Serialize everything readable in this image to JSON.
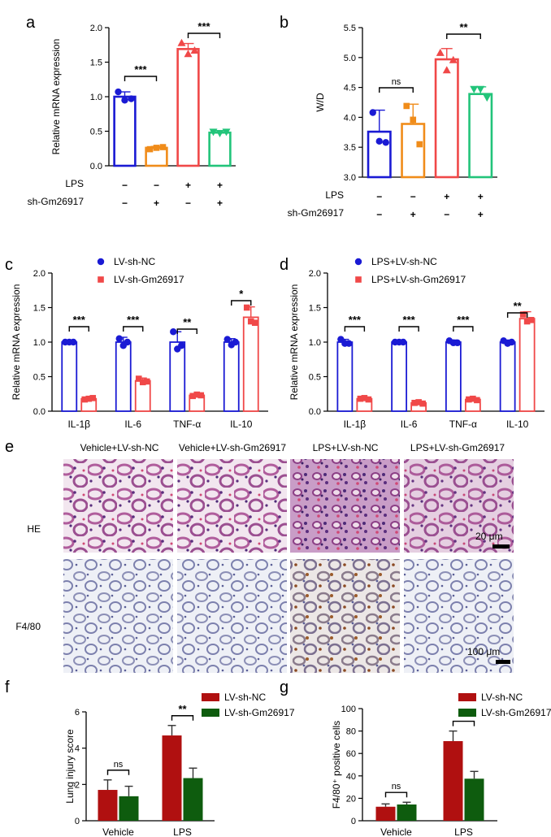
{
  "chart_data": [
    {
      "panel": "a",
      "type": "bar",
      "ylabel": "Relative mRNA expression",
      "ylim": [
        0,
        2.0
      ],
      "yticks": [
        "0.0",
        "0.5",
        "1.0",
        "1.5",
        "2.0"
      ],
      "row_labels": [
        "LPS",
        "sh-Gm26917"
      ],
      "signs": [
        [
          "−",
          "−",
          "+",
          "+"
        ],
        [
          "−",
          "+",
          "−",
          "+"
        ]
      ],
      "values": [
        1.0,
        0.26,
        1.69,
        0.48
      ],
      "errors": [
        0.07,
        0.02,
        0.08,
        0.03
      ],
      "points": [
        [
          1.07,
          0.95,
          0.97
        ],
        [
          0.24,
          0.26,
          0.27
        ],
        [
          1.78,
          1.62,
          1.67
        ],
        [
          0.49,
          0.47,
          0.49
        ]
      ],
      "colors": [
        "#1a1ad4",
        "#f08c1a",
        "#f04848",
        "#22c47a"
      ],
      "markers": [
        "circle",
        "square",
        "triangle-up",
        "triangle-down"
      ],
      "significance": [
        {
          "from": 0,
          "to": 1,
          "label": "***"
        },
        {
          "from": 2,
          "to": 3,
          "label": "***"
        }
      ]
    },
    {
      "panel": "b",
      "type": "bar",
      "ylabel": "W/D",
      "ylim": [
        3.0,
        5.5
      ],
      "yticks": [
        "3.0",
        "3.5",
        "4.0",
        "4.5",
        "5.0",
        "5.5"
      ],
      "row_labels": [
        "LPS",
        "sh-Gm26917"
      ],
      "signs": [
        [
          "−",
          "−",
          "+",
          "+"
        ],
        [
          "−",
          "+",
          "−",
          "+"
        ]
      ],
      "values": [
        3.76,
        3.89,
        4.97,
        4.39
      ],
      "errors": [
        0.36,
        0.33,
        0.18,
        0.12
      ],
      "points": [
        [
          4.08,
          3.6,
          3.58
        ],
        [
          4.19,
          3.96,
          3.55
        ],
        [
          5.08,
          4.79,
          4.96
        ],
        [
          4.47,
          4.47,
          4.33
        ]
      ],
      "colors": [
        "#1a1ad4",
        "#f08c1a",
        "#f04848",
        "#22c47a"
      ],
      "markers": [
        "circle",
        "square",
        "triangle-up",
        "triangle-down"
      ],
      "significance": [
        {
          "from": 0,
          "to": 1,
          "label": "ns"
        },
        {
          "from": 2,
          "to": 3,
          "label": "**"
        }
      ]
    },
    {
      "panel": "c",
      "type": "bar",
      "ylabel": "Relative mRNA expression",
      "ylim": [
        0,
        2.0
      ],
      "yticks": [
        "0.0",
        "0.5",
        "1.0",
        "1.5",
        "2.0"
      ],
      "categories": [
        "IL-1β",
        "IL-6",
        "TNF-α",
        "IL-10"
      ],
      "series": [
        {
          "name": "LV-sh-NC",
          "color": "#1a1ad4",
          "marker": "circle",
          "values": [
            1.0,
            1.0,
            1.0,
            1.0
          ],
          "errors": [
            0.02,
            0.07,
            0.15,
            0.05
          ],
          "points": [
            [
              1.0,
              1.0,
              1.0
            ],
            [
              1.05,
              0.95,
              1.0
            ],
            [
              1.15,
              0.9,
              0.95
            ],
            [
              1.04,
              0.96,
              1.0
            ]
          ]
        },
        {
          "name": "LV-sh-Gm26917",
          "color": "#f04848",
          "marker": "square",
          "values": [
            0.18,
            0.44,
            0.23,
            1.36
          ],
          "errors": [
            0.02,
            0.04,
            0.02,
            0.15
          ],
          "points": [
            [
              0.17,
              0.18,
              0.19
            ],
            [
              0.47,
              0.42,
              0.43
            ],
            [
              0.22,
              0.24,
              0.23
            ],
            [
              1.5,
              1.3,
              1.28
            ]
          ]
        }
      ],
      "significance": [
        "***",
        "***",
        "**",
        "*"
      ]
    },
    {
      "panel": "d",
      "type": "bar",
      "ylabel": "Relative mRNA expression",
      "ylim": [
        0,
        2.0
      ],
      "yticks": [
        "0.0",
        "0.5",
        "1.0",
        "1.5",
        "2.0"
      ],
      "categories": [
        "IL-1β",
        "IL-6",
        "TNF-α",
        "IL-10"
      ],
      "series": [
        {
          "name": "LPS+LV-sh-NC",
          "color": "#1a1ad4",
          "marker": "circle",
          "values": [
            1.0,
            1.0,
            1.0,
            1.0
          ],
          "errors": [
            0.04,
            0.02,
            0.03,
            0.03
          ],
          "points": [
            [
              1.04,
              0.98,
              0.98
            ],
            [
              1.0,
              1.0,
              1.0
            ],
            [
              1.02,
              0.99,
              0.99
            ],
            [
              1.02,
              0.98,
              1.0
            ]
          ]
        },
        {
          "name": "LPS+LV-sh-Gm26917",
          "color": "#f04848",
          "marker": "square",
          "values": [
            0.18,
            0.12,
            0.17,
            1.34
          ],
          "errors": [
            0.02,
            0.01,
            0.01,
            0.1
          ],
          "points": [
            [
              0.18,
              0.19,
              0.17
            ],
            [
              0.12,
              0.13,
              0.11
            ],
            [
              0.17,
              0.18,
              0.16
            ],
            [
              1.4,
              1.3,
              1.32
            ]
          ]
        }
      ],
      "significance": [
        "***",
        "***",
        "***",
        "**"
      ]
    },
    {
      "panel": "f",
      "type": "bar",
      "ylabel": "Lung injury score",
      "ylim": [
        0,
        6
      ],
      "yticks": [
        "0",
        "2",
        "4",
        "6"
      ],
      "categories": [
        "Vehicle",
        "LPS"
      ],
      "series": [
        {
          "name": "LV-sh-NC",
          "color": "#b01010",
          "values": [
            1.7,
            4.7
          ],
          "errors": [
            0.55,
            0.55
          ]
        },
        {
          "name": "LV-sh-Gm26917",
          "color": "#0e5c0e",
          "values": [
            1.35,
            2.35
          ],
          "errors": [
            0.55,
            0.55
          ]
        }
      ],
      "significance": [
        "ns",
        "**"
      ]
    },
    {
      "panel": "g",
      "type": "bar",
      "ylabel": "F4/80⁺ positive cells",
      "ylim": [
        0,
        100
      ],
      "yticks": [
        "0",
        "20",
        "40",
        "60",
        "80",
        "100"
      ],
      "categories": [
        "Vehicle",
        "LPS"
      ],
      "series": [
        {
          "name": "LV-sh-NC",
          "color": "#b01010",
          "values": [
            12.5,
            71
          ],
          "errors": [
            2.5,
            9
          ]
        },
        {
          "name": "LV-sh-Gm26917",
          "color": "#0e5c0e",
          "values": [
            14.5,
            37.5
          ],
          "errors": [
            2,
            6.5
          ]
        }
      ],
      "significance": [
        "ns",
        "**"
      ]
    }
  ],
  "panel_e": {
    "label": "e",
    "columns": [
      "Vehicle+LV-sh-NC",
      "Vehicle+LV-sh-Gm26917",
      "LPS+LV-sh-NC",
      "LPS+LV-sh-Gm26917"
    ],
    "rows": [
      "HE",
      "F4/80"
    ],
    "scale_bars": [
      "20 μm",
      "100 μm"
    ]
  },
  "panel_labels": [
    "a",
    "b",
    "c",
    "d",
    "f",
    "g"
  ]
}
